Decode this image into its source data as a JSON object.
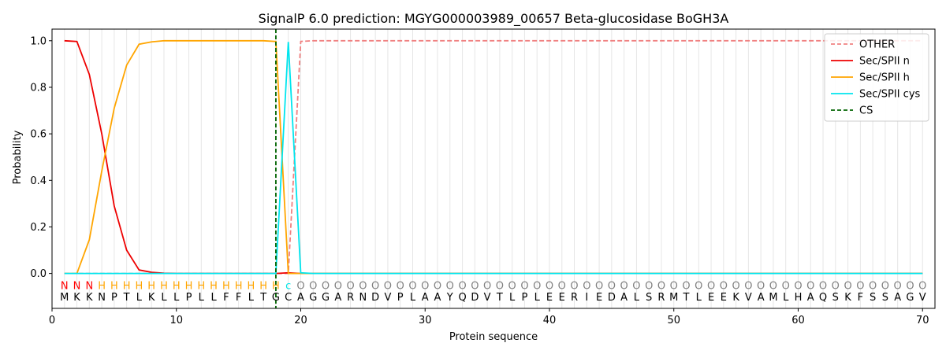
{
  "chart_data": {
    "type": "line",
    "title": "SignalP 6.0 prediction: MGYG000003989_00657 Beta-glucosidase BoGH3A",
    "xlabel": "Protein sequence",
    "ylabel": "Probability",
    "xlim": [
      0,
      71
    ],
    "ylim": [
      -0.15,
      1.05
    ],
    "xticks": [
      0,
      10,
      20,
      30,
      40,
      50,
      60,
      70
    ],
    "yticks": [
      0.0,
      0.2,
      0.4,
      0.6,
      0.8,
      1.0
    ],
    "grid": "vertical lines at each residue",
    "legend_position": "top-right",
    "sequence": [
      "M",
      "K",
      "K",
      "N",
      "P",
      "T",
      "L",
      "K",
      "L",
      "L",
      "P",
      "L",
      "L",
      "F",
      "F",
      "L",
      "T",
      "G",
      "C",
      "A",
      "G",
      "G",
      "A",
      "R",
      "N",
      "D",
      "V",
      "P",
      "L",
      "A",
      "A",
      "Y",
      "Q",
      "D",
      "V",
      "T",
      "L",
      "P",
      "L",
      "E",
      "E",
      "R",
      "I",
      "E",
      "D",
      "A",
      "L",
      "S",
      "R",
      "M",
      "T",
      "L",
      "E",
      "E",
      "K",
      "V",
      "A",
      "M",
      "L",
      "H",
      "A",
      "Q",
      "S",
      "K",
      "F",
      "S",
      "S",
      "A",
      "G",
      "V"
    ],
    "labels": [
      "N",
      "N",
      "N",
      "H",
      "H",
      "H",
      "H",
      "H",
      "H",
      "H",
      "H",
      "H",
      "H",
      "H",
      "H",
      "H",
      "H",
      "H",
      "c",
      "O",
      "O",
      "O",
      "O",
      "O",
      "O",
      "O",
      "O",
      "O",
      "O",
      "O",
      "O",
      "O",
      "O",
      "O",
      "O",
      "O",
      "O",
      "O",
      "O",
      "O",
      "O",
      "O",
      "O",
      "O",
      "O",
      "O",
      "O",
      "O",
      "O",
      "O",
      "O",
      "O",
      "O",
      "O",
      "O",
      "O",
      "O",
      "O",
      "O",
      "O",
      "O",
      "O",
      "O",
      "O",
      "O",
      "O",
      "O",
      "O",
      "O",
      "O"
    ],
    "label_colors": {
      "N": "#ff0000",
      "H": "#ffa500",
      "c": "#00e5e5",
      "O": "#808080"
    },
    "series": [
      {
        "name": "OTHER",
        "color": "#f08080",
        "style": "dashed",
        "x": [
          1,
          2,
          3,
          4,
          5,
          6,
          7,
          8,
          9,
          10,
          11,
          12,
          13,
          14,
          15,
          16,
          17,
          18,
          19,
          20,
          21,
          70
        ],
        "y": [
          0,
          0,
          0,
          0,
          0,
          0,
          0,
          0,
          0,
          0,
          0,
          0,
          0,
          0,
          0,
          0,
          0,
          0,
          0.0,
          0.997,
          1.0,
          1.0
        ]
      },
      {
        "name": "Sec/SPII n",
        "color": "#ee0000",
        "style": "solid",
        "x": [
          1,
          2,
          3,
          4,
          5,
          6,
          7,
          8,
          9,
          10,
          11,
          12,
          13,
          14,
          15,
          16,
          17,
          18,
          19,
          20,
          21,
          70
        ],
        "y": [
          1.0,
          0.997,
          0.855,
          0.6,
          0.29,
          0.1,
          0.015,
          0.005,
          0.001,
          0,
          0,
          0,
          0,
          0,
          0,
          0,
          0,
          0.0,
          0.003,
          0.0,
          0.0,
          0.0
        ]
      },
      {
        "name": "Sec/SPII h",
        "color": "#ffa500",
        "style": "solid",
        "x": [
          1,
          2,
          3,
          4,
          5,
          6,
          7,
          8,
          9,
          10,
          11,
          12,
          13,
          14,
          15,
          16,
          17,
          18,
          19,
          20,
          21,
          70
        ],
        "y": [
          0.0,
          0.0,
          0.145,
          0.44,
          0.71,
          0.895,
          0.985,
          0.995,
          1.0,
          1.0,
          1.0,
          1.0,
          1.0,
          1.0,
          1.0,
          1.0,
          1.0,
          0.997,
          0.0,
          0.0,
          0.0,
          0.0
        ]
      },
      {
        "name": "Sec/SPII cys",
        "color": "#00e5ee",
        "style": "solid",
        "x": [
          1,
          2,
          3,
          4,
          5,
          6,
          7,
          8,
          9,
          10,
          11,
          12,
          13,
          14,
          15,
          16,
          17,
          18,
          19,
          20,
          21,
          70
        ],
        "y": [
          0,
          0,
          0,
          0,
          0,
          0,
          0,
          0,
          0,
          0,
          0,
          0,
          0,
          0,
          0,
          0,
          0,
          0.0,
          0.995,
          0.003,
          0.0,
          0.0
        ]
      }
    ],
    "cs": {
      "name": "CS",
      "x": 18,
      "color": "#006400",
      "style": "dashed"
    }
  }
}
